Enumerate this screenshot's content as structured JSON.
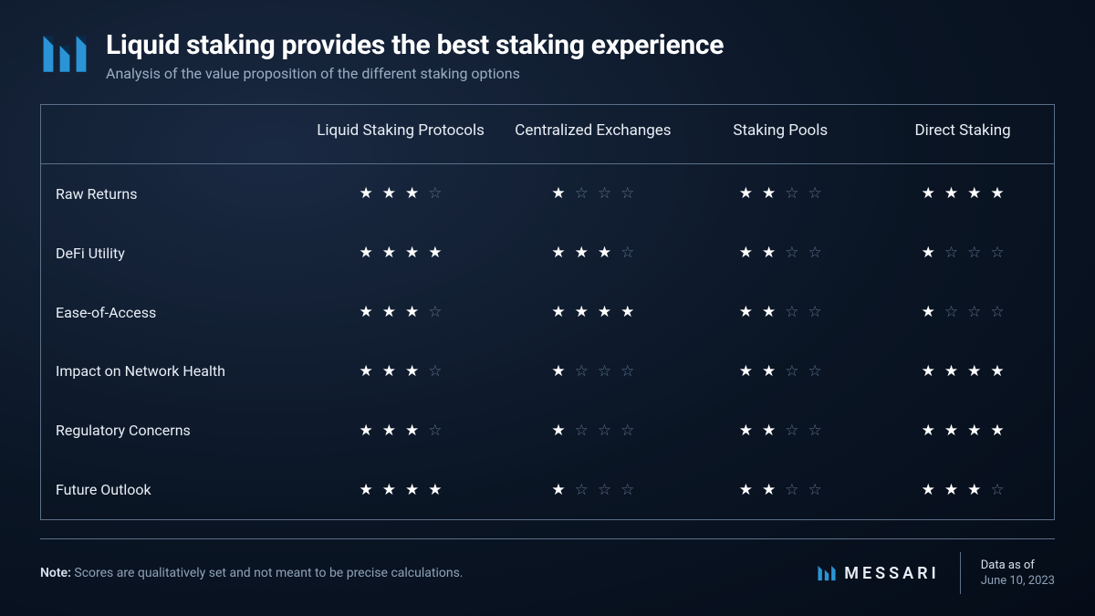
{
  "header": {
    "title": "Liquid staking provides the best staking experience",
    "subtitle": "Analysis of the value proposition of the different staking options"
  },
  "table": {
    "type": "table",
    "max_stars": 4,
    "columns": [
      "",
      "Liquid Staking Protocols",
      "Centralized Exchanges",
      "Staking Pools",
      "Direct Staking"
    ],
    "rows": [
      {
        "label": "Raw Returns",
        "ratings": [
          3,
          1,
          2,
          4
        ]
      },
      {
        "label": "DeFi Utility",
        "ratings": [
          4,
          3,
          2,
          1
        ]
      },
      {
        "label": "Ease-of-Access",
        "ratings": [
          3,
          4,
          2,
          1
        ]
      },
      {
        "label": "Impact on Network Health",
        "ratings": [
          3,
          1,
          2,
          4
        ]
      },
      {
        "label": "Regulatory Concerns",
        "ratings": [
          3,
          1,
          2,
          4
        ]
      },
      {
        "label": "Future Outlook",
        "ratings": [
          4,
          1,
          2,
          3
        ]
      }
    ],
    "star_filled_color": "#ffffff",
    "star_empty_color": "#5d7089",
    "border_color": "#5d7089",
    "text_color": "#e8eef5",
    "subtext_color": "#9aadc2",
    "background_gradient": [
      "#1a2942",
      "#0a1524",
      "#050c18"
    ],
    "header_fontsize": 17,
    "cell_fontsize": 16
  },
  "footer": {
    "note_label": "Note:",
    "note_text": "Scores are qualitatively set and not meant to be precise calculations.",
    "brand": "MESSARI",
    "date_label": "Data as of",
    "date_value": "June 10, 2023"
  },
  "logo": {
    "bar_color_dark": "#0b2b4a",
    "bar_color_light": "#2a94d6"
  }
}
